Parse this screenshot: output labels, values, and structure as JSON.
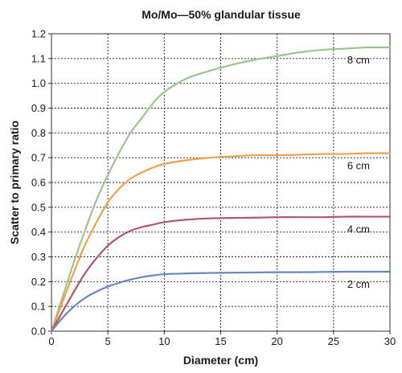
{
  "chart_data": {
    "type": "line",
    "title": "Mo/Mo—50% glandular tissue",
    "xlabel": "Diameter (cm)",
    "ylabel": "Scatter to primary ratio",
    "xlim": [
      0,
      30
    ],
    "ylim": [
      0,
      1.2
    ],
    "xticks": [
      "0",
      "5",
      "10",
      "15",
      "20",
      "25",
      "30"
    ],
    "yticks": [
      "0.0",
      "0.1",
      "0.2",
      "0.3",
      "0.4",
      "0.5",
      "0.6",
      "0.7",
      "0.8",
      "0.9",
      "1.0",
      "1.1",
      "1.2"
    ],
    "grid": true,
    "x": [
      0,
      1,
      2,
      3,
      4,
      5,
      6,
      7,
      8,
      9,
      10,
      12,
      14,
      16,
      18,
      20,
      22,
      24,
      26,
      28,
      30
    ],
    "series": [
      {
        "name": "8 cm",
        "color": "#9dc48a",
        "values": [
          0,
          0.14,
          0.28,
          0.41,
          0.53,
          0.63,
          0.72,
          0.8,
          0.86,
          0.92,
          0.965,
          1.02,
          1.05,
          1.075,
          1.095,
          1.11,
          1.125,
          1.135,
          1.14,
          1.145,
          1.145
        ]
      },
      {
        "name": "6 cm",
        "color": "#f0a04a",
        "values": [
          0,
          0.12,
          0.24,
          0.35,
          0.44,
          0.52,
          0.575,
          0.615,
          0.64,
          0.66,
          0.675,
          0.69,
          0.7,
          0.705,
          0.71,
          0.71,
          0.712,
          0.715,
          0.715,
          0.718,
          0.718
        ]
      },
      {
        "name": "4 cm",
        "color": "#b05868",
        "values": [
          0,
          0.08,
          0.16,
          0.235,
          0.295,
          0.345,
          0.38,
          0.405,
          0.42,
          0.43,
          0.44,
          0.45,
          0.455,
          0.457,
          0.458,
          0.46,
          0.46,
          0.46,
          0.462,
          0.462,
          0.462
        ]
      },
      {
        "name": "2 cm",
        "color": "#6688c0",
        "values": [
          0,
          0.055,
          0.1,
          0.135,
          0.16,
          0.18,
          0.195,
          0.208,
          0.218,
          0.225,
          0.23,
          0.233,
          0.235,
          0.236,
          0.237,
          0.238,
          0.238,
          0.239,
          0.24,
          0.24,
          0.24
        ]
      }
    ]
  }
}
